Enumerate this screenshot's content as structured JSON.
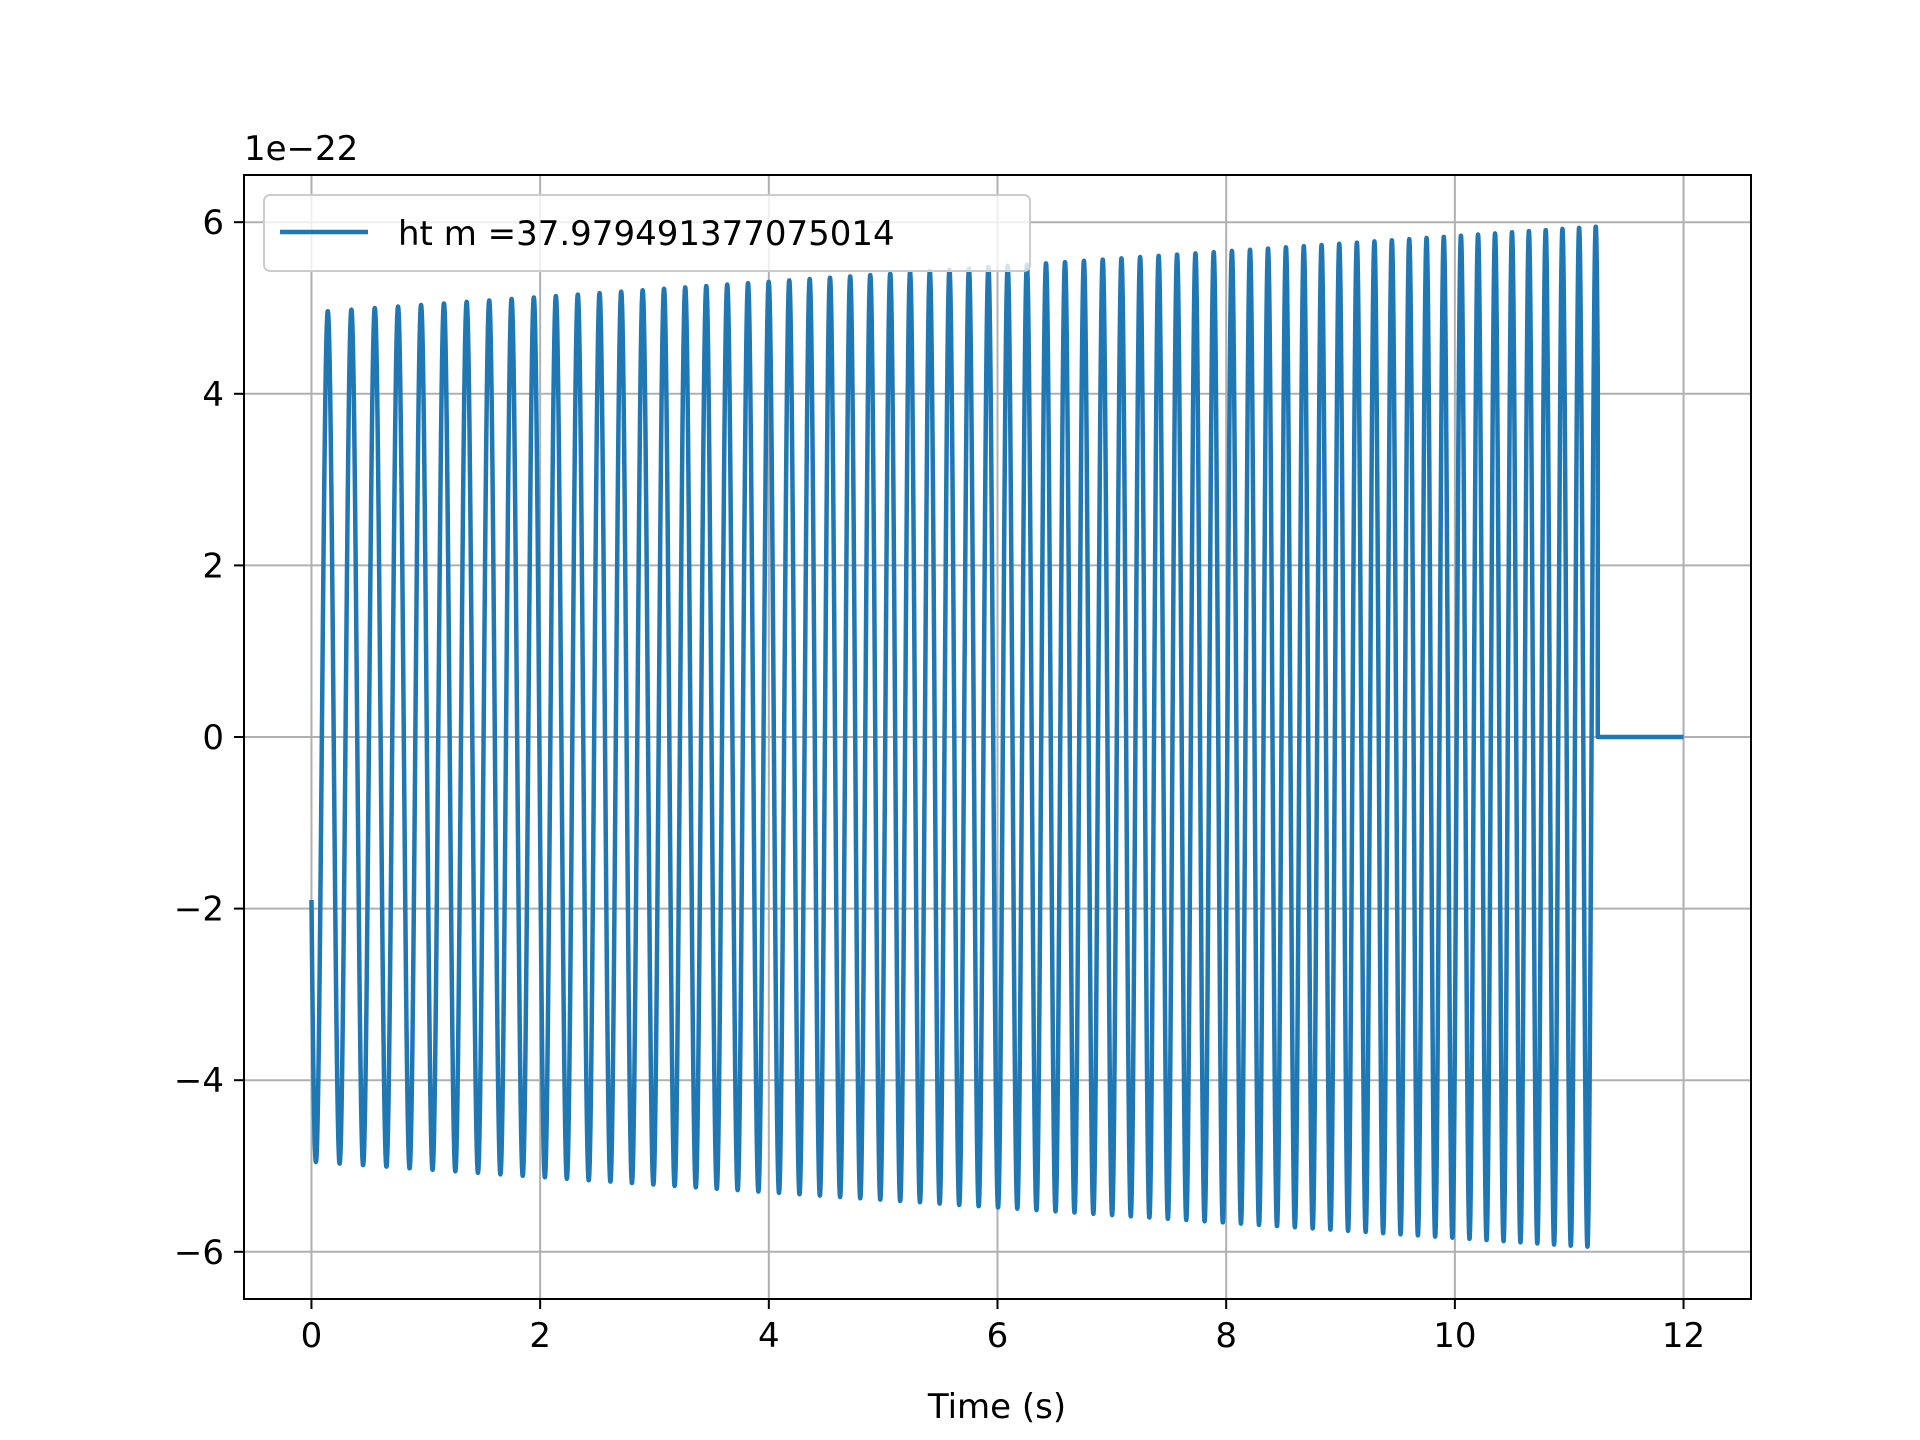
{
  "chart_data": {
    "type": "line",
    "title": "",
    "xlabel": "Time (s)",
    "ylabel": "",
    "y_offset_label": "1e−22",
    "xlim": [
      -0.59,
      12.59
    ],
    "ylim": [
      -6.55,
      6.55
    ],
    "x_ticks": [
      0,
      2,
      4,
      6,
      8,
      10,
      12
    ],
    "x_tick_labels": [
      "0",
      "2",
      "4",
      "6",
      "8",
      "10",
      "12"
    ],
    "y_ticks": [
      -6,
      -4,
      -2,
      0,
      2,
      4,
      6
    ],
    "y_tick_labels": [
      "−6",
      "−4",
      "−2",
      "0",
      "2",
      "4",
      "6"
    ],
    "grid": true,
    "legend_position": "top-left",
    "series": [
      {
        "name": "ht m =37.979491377075014",
        "color": "#1f77b4",
        "signal": {
          "t_start": 0.0,
          "t_end": 11.25,
          "t_flat_end": 12.0,
          "start_value": -1.9,
          "amplitude_start": 4.95,
          "amplitude_end": 5.95,
          "frequency_start_hz": 4.8,
          "frequency_end_hz": 6.9
        }
      }
    ]
  }
}
